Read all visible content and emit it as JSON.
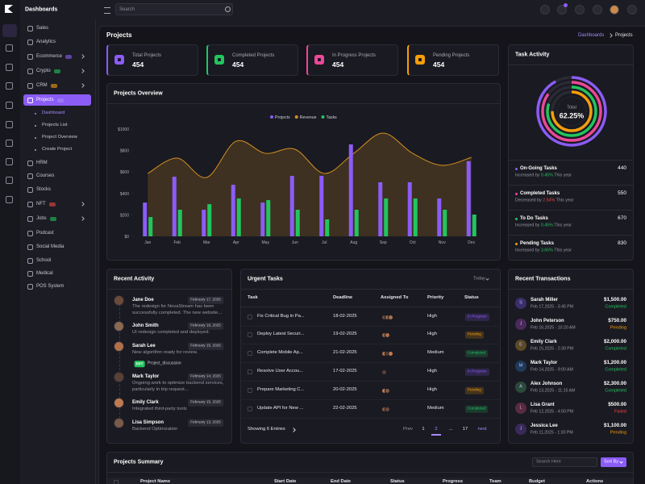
{
  "topbar": {
    "brand": "Dashboards",
    "search": "Search"
  },
  "sidebar": {
    "items": [
      "Sales",
      "Analytics",
      "Ecommerce",
      "Crypto",
      "CRM",
      "Projects"
    ],
    "submenu": [
      "Dashboard",
      "Projects List",
      "Project Overview",
      "Create Project"
    ],
    "items2": [
      "HRM",
      "Courses",
      "Stocks",
      "NFT",
      "Jobs",
      "Podcast",
      "Social Media",
      "School",
      "Medical",
      "POS System"
    ]
  },
  "header": {
    "title": "Projects",
    "breadcrumb": [
      "Dashboards",
      "Projects"
    ]
  },
  "stats": [
    {
      "label": "Total Projects",
      "value": 454,
      "color": "#8b5cf6"
    },
    {
      "label": "Completed Projects",
      "value": 454,
      "color": "#22c55e"
    },
    {
      "label": "In Progress Projects",
      "value": 454,
      "color": "#ec4899"
    },
    {
      "label": "Pending Projects",
      "value": 454,
      "color": "#f59e0b"
    }
  ],
  "chart_data": {
    "type": "bar",
    "title": "Projects Overview",
    "categories": [
      "Jan",
      "Feb",
      "Mar",
      "Apr",
      "May",
      "Jun",
      "Jul",
      "Aug",
      "Sep",
      "Oct",
      "Nov",
      "Dec"
    ],
    "series": [
      {
        "name": "Projects",
        "type": "bar",
        "color": "#8b5cf6",
        "values": [
          315,
          556,
          248,
          481,
          315,
          564,
          564,
          857,
          504,
          504,
          353,
          700
        ]
      },
      {
        "name": "Revenue",
        "type": "area",
        "color": "#d4901e",
        "values": [
          586,
          729,
          549,
          887,
          774,
          812,
          586,
          774,
          962,
          774,
          662,
          737
        ]
      },
      {
        "name": "Tasks",
        "type": "bar",
        "color": "#22c55e",
        "values": [
          180,
          248,
          300,
          353,
          338,
          248,
          158,
          248,
          353,
          353,
          248,
          203
        ]
      }
    ],
    "ylim": [
      0,
      1000
    ],
    "yticks": [
      {
        "value": 0,
        "label": "$0"
      },
      {
        "value": 200,
        "label": "$200"
      },
      {
        "value": 400,
        "label": "$400"
      },
      {
        "value": 600,
        "label": "$600"
      },
      {
        "value": 800,
        "label": "$800"
      },
      {
        "value": 1000,
        "label": "$1000"
      }
    ],
    "grid": false,
    "legend": "top"
  },
  "task_activity": {
    "title": "Task Activity",
    "center_label": "Total",
    "center_value": "62.25%",
    "items": [
      {
        "name": "On-Going Tasks",
        "value": 440,
        "prefix": "Increased by",
        "change": "0.45%",
        "suffix": "This year",
        "color": "#8b5cf6",
        "change_color": "#22c55e"
      },
      {
        "name": "Completed Tasks",
        "value": 550,
        "prefix": "Decreased by",
        "change": "2.54%",
        "suffix": "This year",
        "color": "#ec4899",
        "change_color": "#ef4444"
      },
      {
        "name": "To Do Tasks",
        "value": 670,
        "prefix": "Increased by",
        "change": "0.45%",
        "suffix": "This year",
        "color": "#22c55e",
        "change_color": "#22c55e"
      },
      {
        "name": "Pending Tasks",
        "value": 830,
        "prefix": "Increased by",
        "change": "3.65%",
        "suffix": "This year",
        "color": "#f59e0b",
        "change_color": "#22c55e"
      }
    ]
  },
  "recent_activity": {
    "title": "Recent Activity",
    "items": [
      {
        "name": "Jane Doe",
        "date": "February 17, 2025",
        "text": "The redesign for NovaStream has been successfully completed. The new website..."
      },
      {
        "name": "John Smith",
        "date": "February 16, 2025",
        "text": "UI redesign completed and deployed."
      },
      {
        "name": "Sarah Lee",
        "date": "February 15, 2025",
        "text": "New algorithm ready for review.",
        "file_type": "PPT",
        "file_name": "Project_discussion"
      },
      {
        "name": "Mark Taylor",
        "date": "February 14, 2025",
        "text": "Ongoing work to optimize backend services, particularly in trip request..."
      },
      {
        "name": "Emily Clark",
        "date": "February 15, 2025",
        "text": "Integrated third-party tools"
      },
      {
        "name": "Lisa Simpson",
        "date": "February 13, 2025",
        "text": "Backend Optimization"
      }
    ]
  },
  "urgent_tasks": {
    "title": "Urgent Tasks",
    "filter": "Today",
    "columns": [
      "Task",
      "Deadline",
      "Assigned To",
      "Priority",
      "Status"
    ],
    "rows": [
      {
        "task": "Fix Critical Bug in Pa...",
        "deadline": "18-02-2025",
        "priority": "High",
        "status": "In Progress",
        "status_color": "#8b5cf6"
      },
      {
        "task": "Deploy Latest Securi...",
        "deadline": "19-02-2025",
        "priority": "High",
        "status": "Pending",
        "status_color": "#f59e0b"
      },
      {
        "task": "Complete Mobile Ap...",
        "deadline": "21-02-2025",
        "priority": "Medium",
        "status": "Completed",
        "status_color": "#22c55e"
      },
      {
        "task": "Resolve User Accou...",
        "deadline": "17-02-2025",
        "priority": "High",
        "status": "In Progress",
        "status_color": "#8b5cf6"
      },
      {
        "task": "Prepare Marketing C...",
        "deadline": "20-02-2025",
        "priority": "High",
        "status": "Pending",
        "status_color": "#f59e0b"
      },
      {
        "task": "Update API for New ...",
        "deadline": "22-02-2025",
        "priority": "Medium",
        "status": "Completed",
        "status_color": "#22c55e"
      }
    ],
    "footer": "Showing 6 Entries",
    "pagination": [
      "Prev",
      "1",
      "2",
      "...",
      "17",
      "next"
    ]
  },
  "recent_transactions": {
    "title": "Recent Transactions",
    "items": [
      {
        "initial": "S",
        "name": "Sarah Miller",
        "date": "Feb 17,2025 - 3:45 PM",
        "amount": "$1,500.00",
        "status": "Completed",
        "status_color": "#22c55e"
      },
      {
        "initial": "J",
        "name": "John Peterson",
        "date": "Feb 16,2025 - 10:20 AM",
        "amount": "$750.00",
        "status": "Pending",
        "status_color": "#f59e0b"
      },
      {
        "initial": "E",
        "name": "Emily Clark",
        "date": "Feb 15,2025 - 2:30 PM",
        "amount": "$2,000.00",
        "status": "Completed",
        "status_color": "#22c55e"
      },
      {
        "initial": "M",
        "name": "Mark Taylor",
        "date": "Feb 14,2025 - 9:00 AM",
        "amount": "$1,200.00",
        "status": "Completed",
        "status_color": "#22c55e"
      },
      {
        "initial": "A",
        "name": "Alex Johnson",
        "date": "Feb 13,2025 - 11:15 AM",
        "amount": "$2,300.00",
        "status": "Completed",
        "status_color": "#22c55e"
      },
      {
        "initial": "L",
        "name": "Lisa Grant",
        "date": "Feb 12,2025 - 4:50 PM",
        "amount": "$500.00",
        "status": "Failed",
        "status_color": "#ef4444"
      },
      {
        "initial": "J",
        "name": "Jessica Lee",
        "date": "Feb 11,2025 - 1:30 PM",
        "amount": "$1,100.00",
        "status": "Pending",
        "status_color": "#f59e0b"
      }
    ]
  },
  "projects_summary": {
    "title": "Projects Summary",
    "search": "Search Here",
    "sort": "Sort By",
    "columns": [
      "Project Name",
      "Start Date",
      "End Date",
      "Status",
      "Progress",
      "Team",
      "Budget",
      "Actions"
    ]
  }
}
